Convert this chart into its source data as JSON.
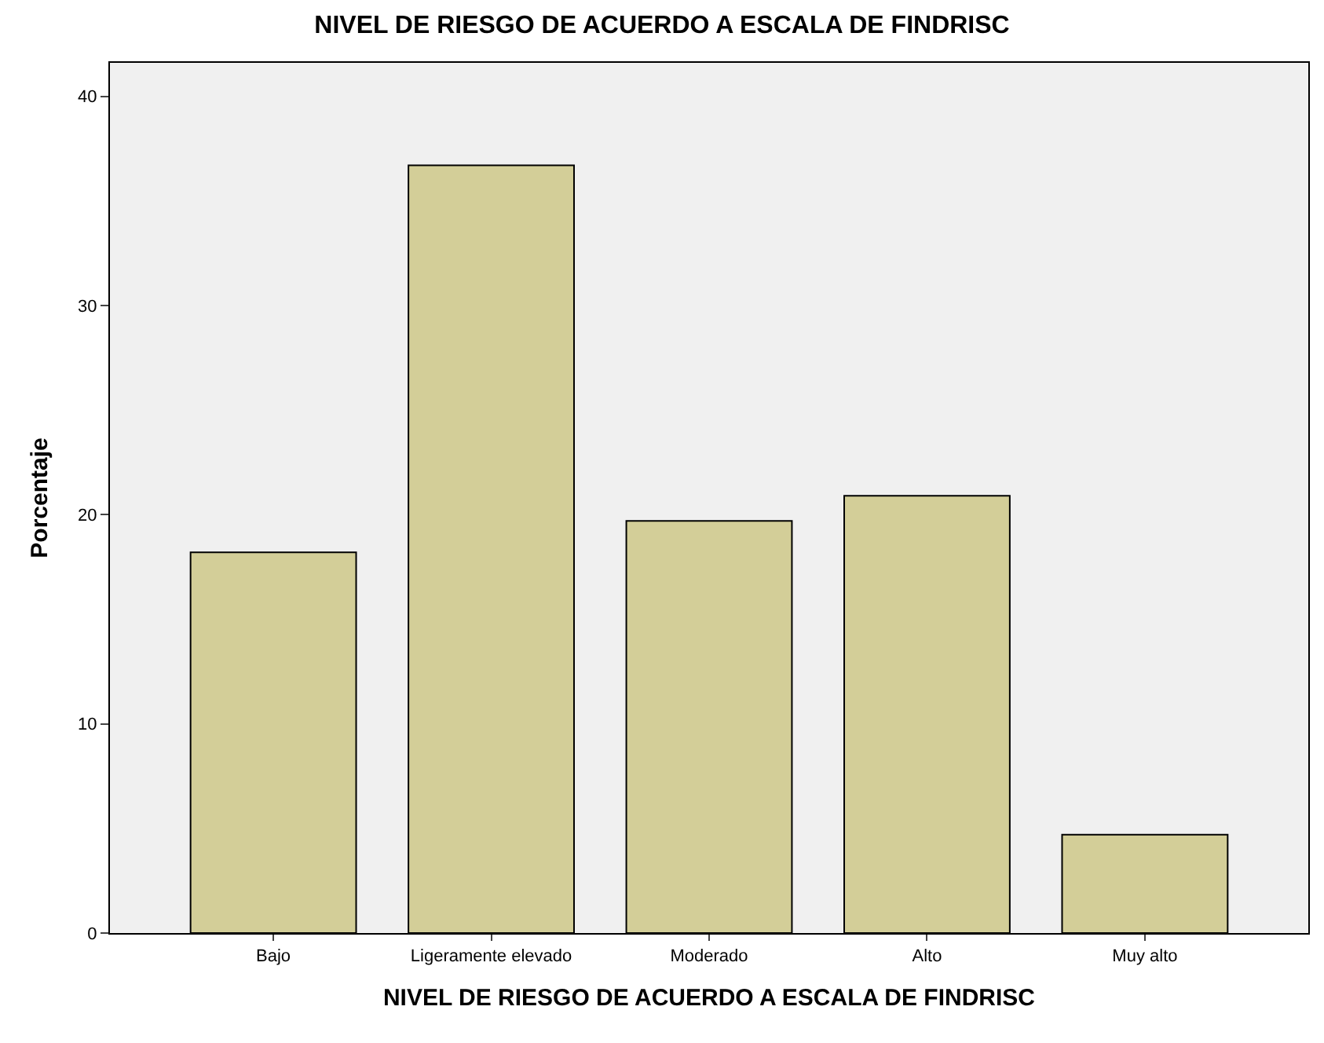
{
  "chart_data": {
    "type": "bar",
    "title": "NIVEL DE RIESGO DE ACUERDO A ESCALA DE FINDRISC",
    "xlabel": "NIVEL DE RIESGO DE ACUERDO A ESCALA DE FINDRISC",
    "ylabel": "Porcentaje",
    "categories": [
      "Bajo",
      "Ligeramente elevado",
      "Moderado",
      "Alto",
      "Muy alto"
    ],
    "values": [
      18.2,
      36.7,
      19.7,
      20.9,
      4.7
    ],
    "color": "#d3ce98",
    "ylim": [
      0,
      41.6
    ],
    "yticks": [
      0,
      10,
      20,
      30,
      40
    ],
    "grid": false
  }
}
